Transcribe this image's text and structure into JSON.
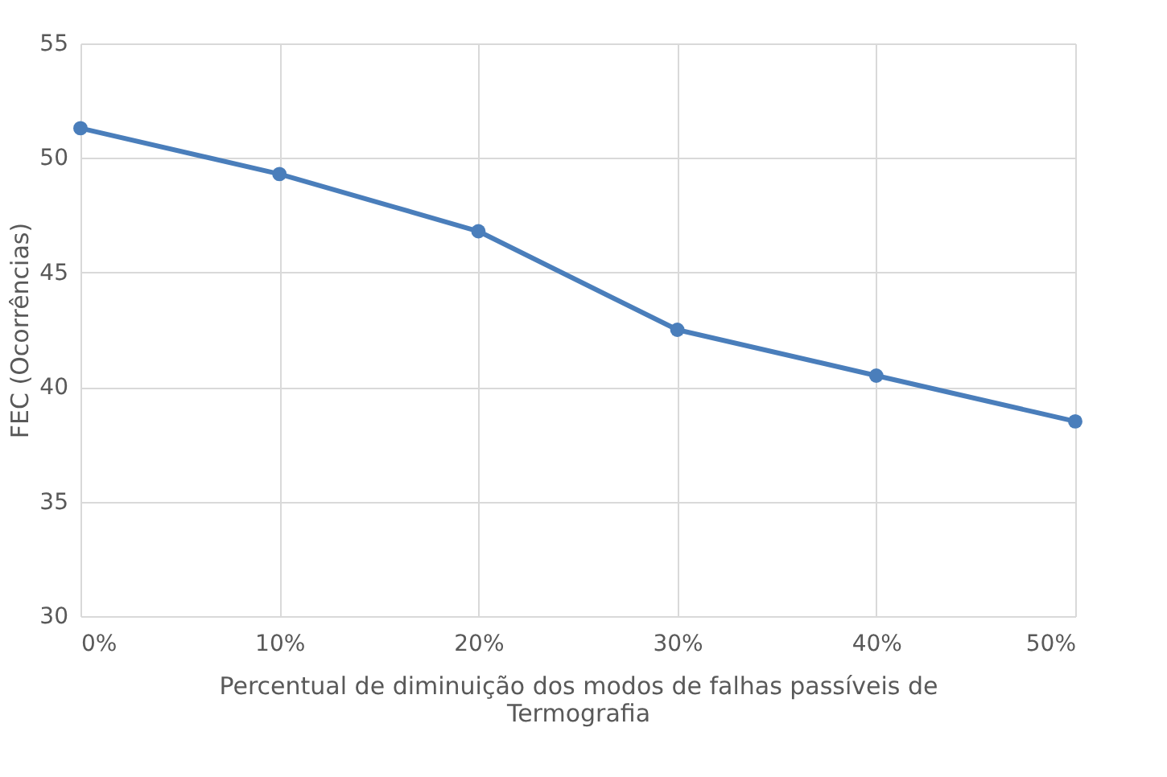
{
  "chart_data": {
    "type": "line",
    "categories": [
      "0%",
      "10%",
      "20%",
      "30%",
      "40%",
      "50%"
    ],
    "series": [
      {
        "color": "#4a7ebb",
        "values": [
          51.3,
          49.3,
          46.8,
          42.5,
          40.5,
          38.5
        ]
      }
    ],
    "xlabel": "Percentual de diminuição dos modos de falhas passíveis de Termografia",
    "ylabel": "FEC (Ocorrências)",
    "ylim": [
      30,
      55
    ],
    "yticks": [
      30,
      35,
      40,
      45,
      50,
      55
    ],
    "grid": true,
    "marker": "circle",
    "line_style": "solid"
  }
}
